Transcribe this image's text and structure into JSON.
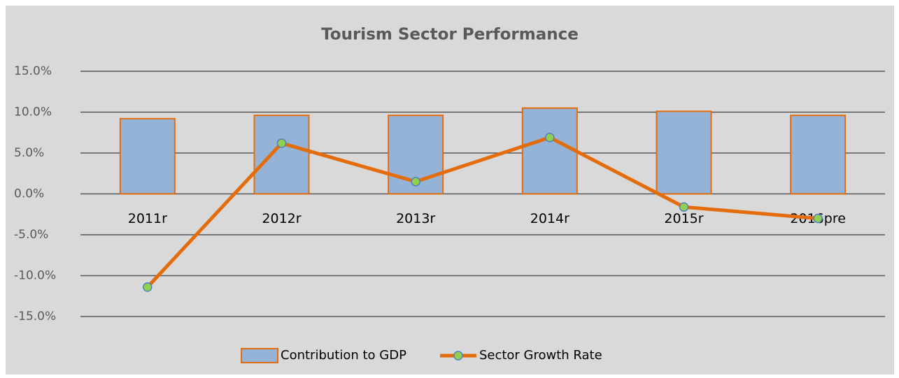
{
  "chart_data": {
    "type": "bar",
    "title": "Tourism Sector Performance",
    "categories": [
      "2011r",
      "2012r",
      "2013r",
      "2014r",
      "2015r",
      "2016pre"
    ],
    "series": [
      {
        "name": "Contribution to GDP",
        "type": "bar",
        "color": "#95b3d7",
        "edgecolor": "#e46c0a",
        "values": [
          9.2,
          9.6,
          9.6,
          10.5,
          10.1,
          9.6
        ]
      },
      {
        "name": "Sector Growth Rate",
        "type": "line",
        "color": "#e46c0a",
        "marker_color": "#92d050",
        "values": [
          -11.4,
          6.2,
          1.5,
          6.9,
          -1.6,
          -3.0
        ]
      }
    ],
    "ylim": [
      -15,
      15
    ],
    "yticks": [
      {
        "value": -15,
        "label": "-15.0%"
      },
      {
        "value": -10,
        "label": "-10.0%"
      },
      {
        "value": -5,
        "label": "-5.0%"
      },
      {
        "value": 0,
        "label": "0.0%"
      },
      {
        "value": 5,
        "label": "5.0%"
      },
      {
        "value": 10,
        "label": "10.0%"
      },
      {
        "value": 15,
        "label": "15.0%"
      }
    ],
    "grid": true,
    "legend": "bottom"
  }
}
